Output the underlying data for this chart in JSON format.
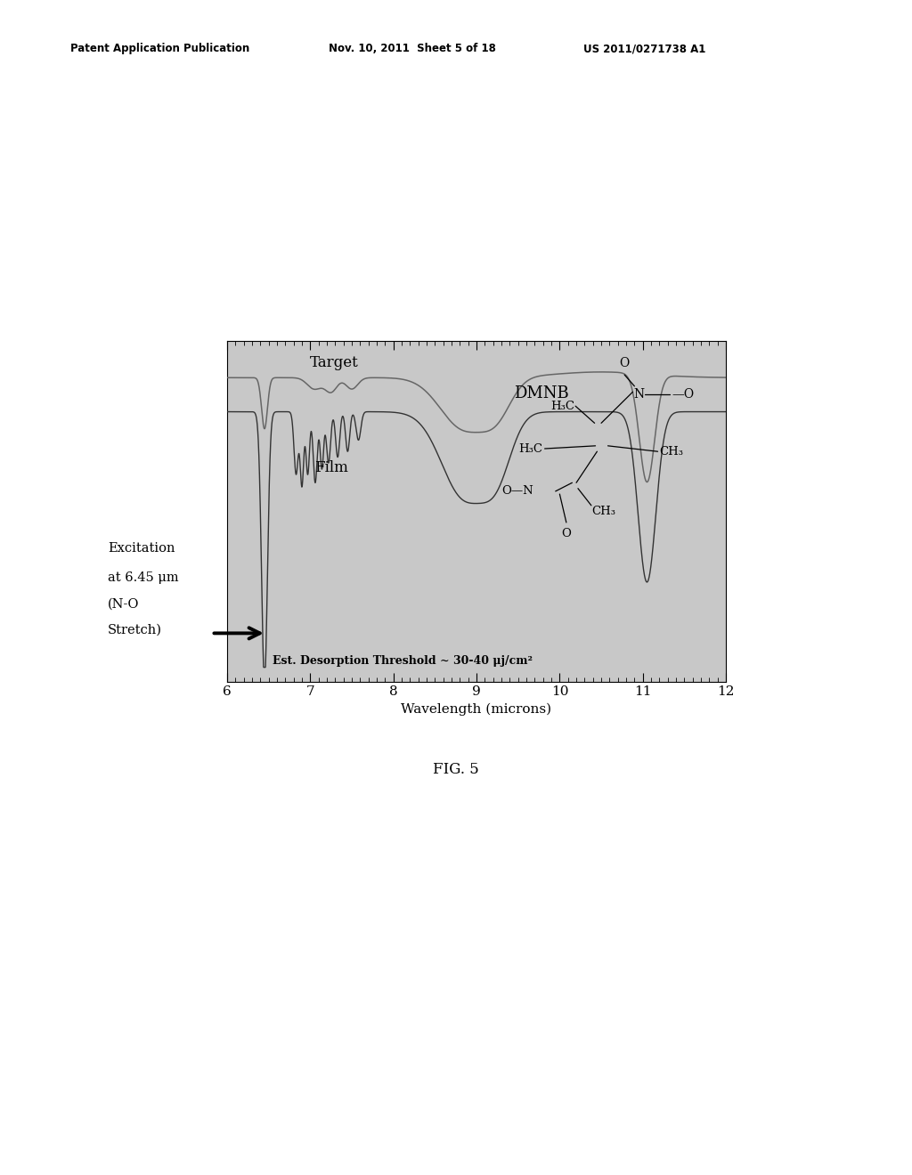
{
  "patent_header_left": "Patent Application Publication",
  "patent_header_mid": "Nov. 10, 2011  Sheet 5 of 18",
  "patent_header_right": "US 2011/0271738 A1",
  "fig_label": "FIG. 5",
  "xlabel": "Wavelength (microns)",
  "xlim": [
    6,
    12
  ],
  "bg_color": "#ffffff",
  "plot_bg": "#cccccc",
  "excitation_label_line1": "Excitation",
  "excitation_label_line2": "at 6.45 μm",
  "excitation_label_line3": "(N-O",
  "excitation_label_line4": "Stretch)",
  "target_label": "Target",
  "film_label": "Film",
  "dmnb_label": "DMNB",
  "threshold_label": "Est. Desorption Threshold ~ 30-40 μj/cm²",
  "curve_color_target": "#666666",
  "curve_color_film": "#333333"
}
